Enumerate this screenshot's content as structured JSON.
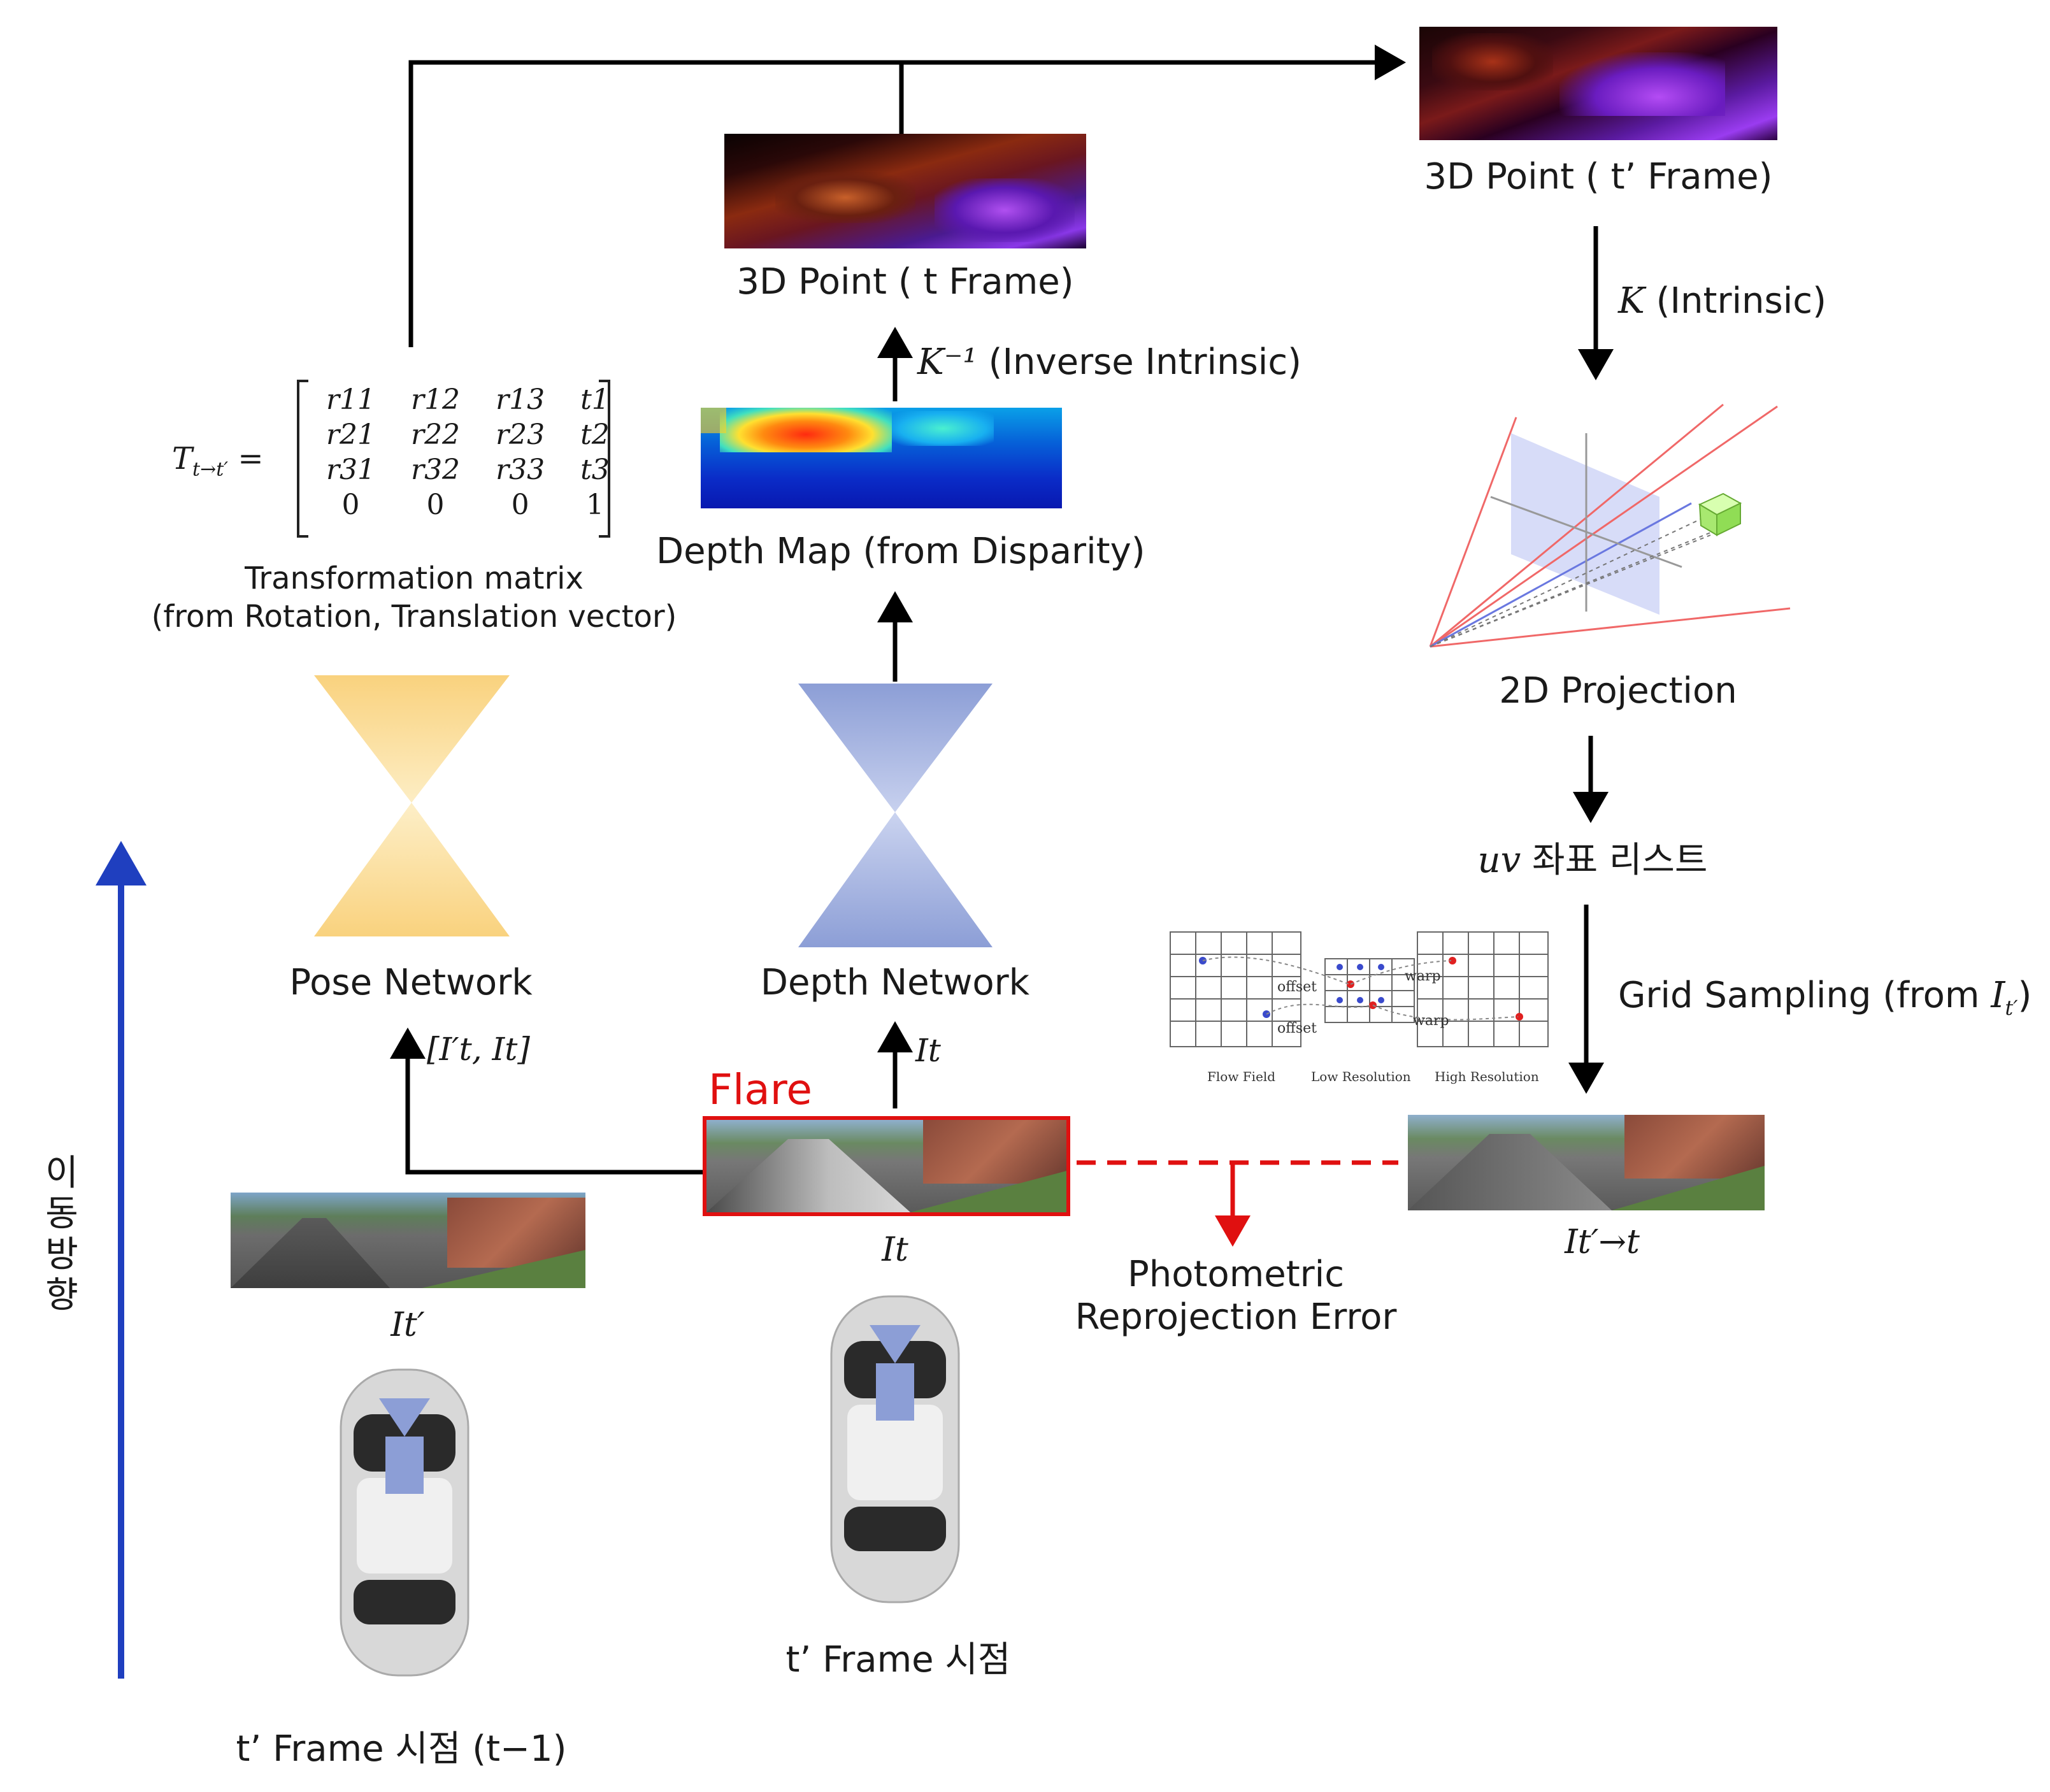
{
  "nodes": {
    "point3d_tprime": "3D Point ( t’ Frame)",
    "intrinsic": "(Intrinsic)",
    "intrinsic_sym": "K",
    "point3d_t": "3D Point ( t Frame)",
    "inverse_intrinsic": "(Inverse Intrinsic)",
    "inverse_intrinsic_sym": "K⁻¹",
    "depth_map": "Depth Map (from Disparity)",
    "projection_2d": "2D Projection",
    "uv_list": "좌표 리스트",
    "uv_sym": "uv",
    "grid_sampling": "Grid Sampling (from",
    "grid_sampling_sym": "I",
    "grid_sampling_sub": "t′",
    "transform_title": "Transformation matrix",
    "transform_sub": "(from Rotation, Translation vector)",
    "transform_lhs": "T",
    "transform_lhs_sub": "t→t′",
    "pose_network": "Pose Network",
    "depth_network": "Depth Network",
    "pose_input": "[I′t, It]",
    "depth_input": "It",
    "flare": "Flare",
    "photometric_1": "Photometric",
    "photometric_2": "Reprojection Error",
    "img_t_label": "It",
    "img_tprime_label": "It′",
    "img_warp_label": "It′→t",
    "frame_now": "t’ Frame 시점",
    "frame_prev": "t’ Frame 시점 (t−1)",
    "direction": [
      "이",
      "동",
      "방",
      "향"
    ]
  },
  "matrix": [
    [
      "r11",
      "r12",
      "r13",
      "t1"
    ],
    [
      "r21",
      "r22",
      "r23",
      "t2"
    ],
    [
      "r31",
      "r32",
      "r33",
      "t3"
    ],
    [
      "0",
      "0",
      "0",
      "1"
    ]
  ],
  "grid_inset": {
    "labels": [
      "offset",
      "offset",
      "warp",
      "warp"
    ],
    "captions": [
      "Flow Field",
      "Low Resolution",
      "High Resolution"
    ]
  },
  "colors": {
    "pose_network": "#f9d27e",
    "depth_network": "#8c9ed6",
    "flare_red": "#e01010",
    "direction_arrow": "#1f3fbf",
    "arrows": "#000000"
  }
}
